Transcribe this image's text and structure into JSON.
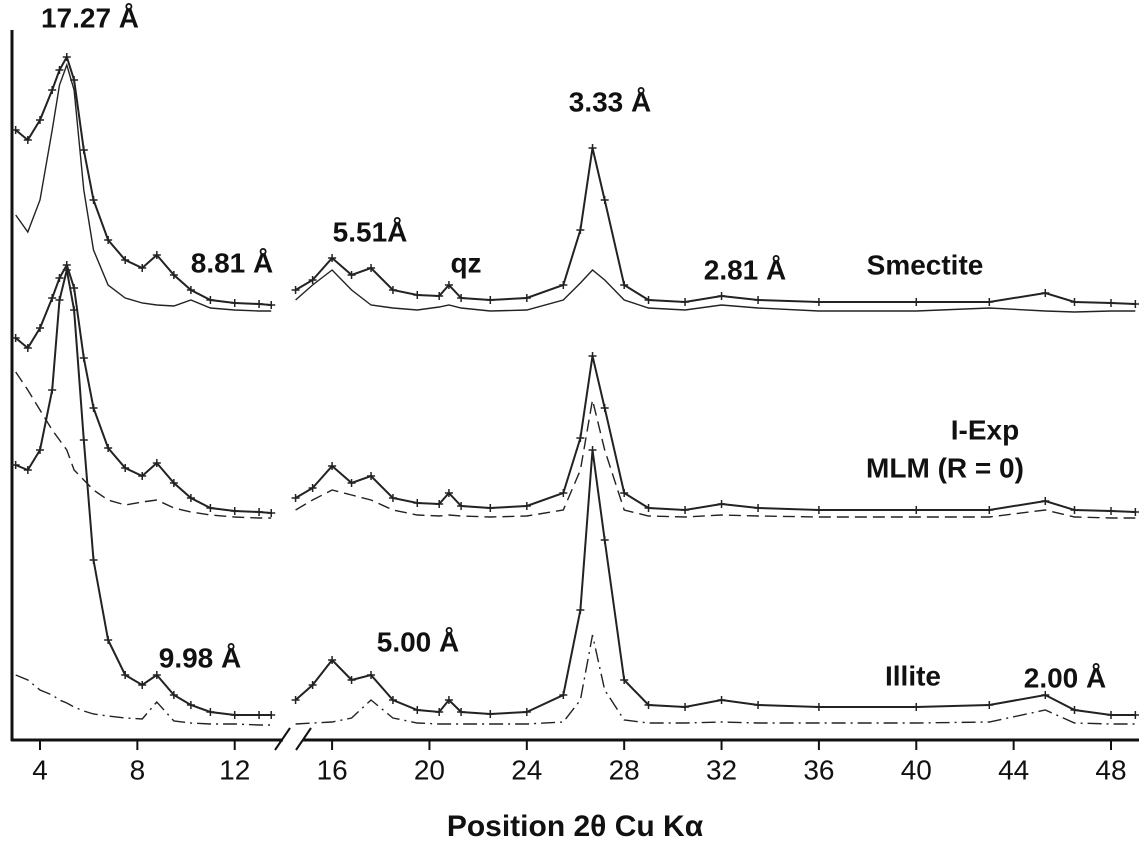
{
  "chart_data": {
    "type": "line",
    "x_label": "Position 2θ Cu Kα",
    "x": [
      3,
      3.5,
      4,
      4.5,
      4.8,
      5.1,
      5.4,
      5.8,
      6.2,
      6.8,
      7.5,
      8.2,
      8.8,
      9.5,
      10.2,
      11,
      12,
      13,
      13.5,
      14,
      14.5,
      15.2,
      16,
      16.8,
      17.6,
      18.5,
      19.5,
      20.4,
      20.8,
      21.3,
      22.5,
      24,
      25.5,
      26.2,
      26.7,
      27.2,
      28,
      29,
      30.5,
      32,
      33.5,
      36,
      40,
      43,
      45.3,
      46.5,
      48,
      49
    ],
    "series": [
      {
        "color": "#222222",
        "linestyle": "plus",
        "values": [
          610,
          600,
          620,
          650,
          670,
          683,
          660,
          590,
          540,
          500,
          480,
          472,
          485,
          465,
          450,
          440,
          437,
          436,
          435,
          null,
          450,
          460,
          482,
          465,
          472,
          450,
          445,
          444,
          455,
          442,
          440,
          442,
          455,
          510,
          592,
          540,
          455,
          440,
          438,
          444,
          440,
          438,
          438,
          438,
          447,
          438,
          437,
          436
        ]
      },
      {
        "color": "#222222",
        "linestyle": "solid",
        "values": [
          525,
          508,
          540,
          610,
          655,
          675,
          650,
          550,
          490,
          455,
          442,
          437,
          435,
          434,
          440,
          432,
          430,
          429,
          429,
          null,
          440,
          455,
          470,
          450,
          435,
          432,
          430,
          433,
          435,
          432,
          429,
          430,
          440,
          457,
          470,
          460,
          440,
          432,
          430,
          435,
          432,
          429,
          429,
          432,
          429,
          428,
          429,
          429
        ]
      },
      {
        "color": "#222222",
        "linestyle": "plus",
        "values": [
          402,
          392,
          412,
          442,
          462,
          475,
          452,
          382,
          332,
          292,
          272,
          264,
          277,
          257,
          242,
          232,
          229,
          228,
          227,
          null,
          242,
          252,
          274,
          257,
          264,
          242,
          237,
          236,
          247,
          234,
          232,
          234,
          247,
          302,
          384,
          332,
          247,
          232,
          230,
          236,
          232,
          230,
          230,
          230,
          239,
          230,
          229,
          228
        ]
      },
      {
        "color": "#222222",
        "linestyle": "dashed",
        "values": [
          368,
          350,
          330,
          310,
          300,
          290,
          270,
          260,
          250,
          240,
          235,
          238,
          240,
          232,
          228,
          225,
          223,
          222,
          222,
          null,
          230,
          240,
          250,
          245,
          240,
          230,
          225,
          224,
          225,
          224,
          223,
          224,
          230,
          270,
          340,
          290,
          230,
          224,
          223,
          225,
          224,
          223,
          223,
          223,
          230,
          223,
          222,
          222
        ]
      },
      {
        "color": "#222222",
        "linestyle": "plus",
        "values": [
          275,
          270,
          290,
          350,
          440,
          470,
          430,
          300,
          180,
          100,
          65,
          55,
          65,
          45,
          35,
          28,
          25,
          25,
          25,
          null,
          40,
          55,
          80,
          60,
          65,
          40,
          30,
          28,
          40,
          28,
          26,
          28,
          45,
          130,
          290,
          200,
          60,
          35,
          33,
          40,
          35,
          33,
          33,
          35,
          45,
          30,
          25,
          25
        ]
      },
      {
        "color": "#222222",
        "linestyle": "dashdot",
        "values": [
          65,
          60,
          50,
          45,
          40,
          37,
          33,
          29,
          26,
          24,
          22,
          21,
          38,
          19,
          17,
          16,
          16,
          15,
          15,
          null,
          16,
          17,
          18,
          22,
          40,
          22,
          17,
          16,
          16,
          16,
          16,
          16,
          18,
          40,
          105,
          50,
          20,
          17,
          17,
          18,
          17,
          17,
          17,
          18,
          30,
          17,
          16,
          16
        ]
      }
    ],
    "annotations": [
      "17.27 Å",
      "8.81 Å",
      "5.51Å",
      "qz",
      "3.33 Å",
      "2.81 Å",
      "Smectite",
      "I-Exp",
      "MLM (R = 0)",
      "9.98 Å",
      "5.00 Å",
      "Illite",
      "2.00 Å"
    ],
    "xlim": [
      2.85,
      49.15
    ],
    "xticks": [
      4,
      8,
      12,
      16,
      20,
      24,
      28,
      32,
      36,
      40,
      44,
      48
    ],
    "ylim": [
      0,
      710
    ]
  }
}
